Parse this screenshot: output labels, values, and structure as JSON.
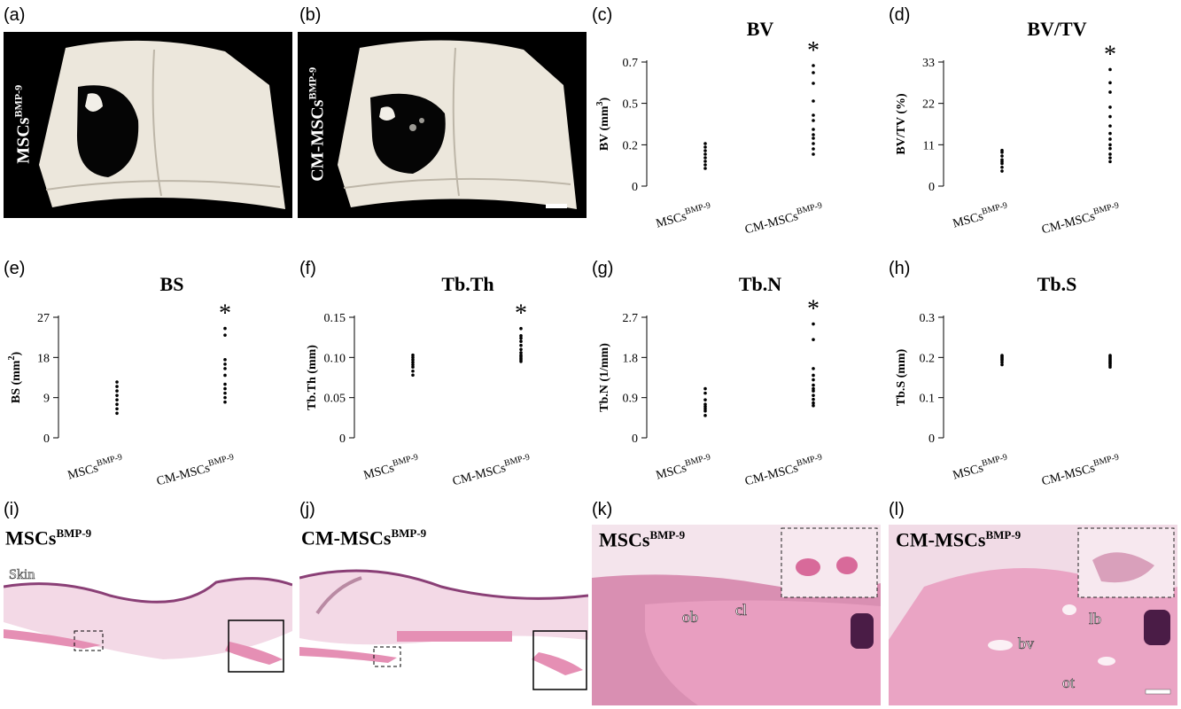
{
  "panel_labels": [
    "(a)",
    "(b)",
    "(c)",
    "(d)",
    "(e)",
    "(f)",
    "(g)",
    "(h)",
    "(i)",
    "(j)",
    "(k)",
    "(l)"
  ],
  "photos": {
    "a_label": {
      "main": "MSCs",
      "sup": "BMP-9"
    },
    "b_label": {
      "main": "CM-MSCs",
      "sup": "BMP-9"
    }
  },
  "histology": {
    "i": {
      "title_main": "MSCs",
      "title_sup": "BMP-9",
      "annotation": "Skin"
    },
    "j": {
      "title_main": "CM-MSCs",
      "title_sup": "BMP-9"
    },
    "k": {
      "title_main": "MSCs",
      "title_sup": "BMP-9",
      "ann1": "ob",
      "ann2": "cl"
    },
    "l": {
      "title_main": "CM-MSCs",
      "title_sup": "BMP-9",
      "ann1": "lb",
      "ann2": "bv",
      "ann3": "ot"
    }
  },
  "colors": {
    "dots": "#000000",
    "photo_bg": "#000000",
    "bone": "#ece7dc",
    "tissue_pink": "#e58fb4",
    "tissue_light": "#f3d9e6"
  },
  "chart_data": [
    {
      "id": "c",
      "type": "scatter",
      "title": "BV",
      "ylabel_main": "BV (mm",
      "ylabel_sup": "3",
      "ylabel_end": ")",
      "ticks": [
        "0",
        "0.2",
        "0.5",
        "0.7"
      ],
      "tick_values": [
        0,
        0.233,
        0.467,
        0.7
      ],
      "ylim": [
        0,
        0.7
      ],
      "categories": [
        {
          "main": "MSCs",
          "sup": "BMP-9"
        },
        {
          "main": "CM-MSCs",
          "sup": "BMP-9"
        }
      ],
      "series": [
        [
          0.1,
          0.12,
          0.14,
          0.16,
          0.18,
          0.2,
          0.22,
          0.24
        ],
        [
          0.18,
          0.21,
          0.24,
          0.27,
          0.29,
          0.32,
          0.37,
          0.4,
          0.48,
          0.58,
          0.64,
          0.68
        ]
      ],
      "significance": [
        null,
        "*"
      ]
    },
    {
      "id": "d",
      "type": "scatter",
      "title": "BV/TV",
      "ylabel_main": "BV/TV (%)",
      "ylabel_sup": "",
      "ylabel_end": "",
      "ticks": [
        "0",
        "11",
        "22",
        "33"
      ],
      "tick_values": [
        0,
        11,
        22,
        33
      ],
      "ylim": [
        0,
        33
      ],
      "categories": [
        {
          "main": "MSCs",
          "sup": "BMP-9"
        },
        {
          "main": "CM-MSCs",
          "sup": "BMP-9"
        }
      ],
      "series": [
        [
          4,
          5,
          6,
          6.5,
          7,
          8,
          9,
          9.5
        ],
        [
          6.5,
          7.5,
          8.5,
          10,
          11,
          12.5,
          14,
          16,
          18.5,
          21,
          25,
          27.5,
          31
        ]
      ],
      "significance": [
        null,
        "*"
      ]
    },
    {
      "id": "e",
      "type": "scatter",
      "title": "BS",
      "ylabel_main": "BS (mm",
      "ylabel_sup": "2",
      "ylabel_end": ")",
      "ticks": [
        "0",
        "9",
        "18",
        "27"
      ],
      "tick_values": [
        0,
        9,
        18,
        27
      ],
      "ylim": [
        0,
        27
      ],
      "categories": [
        {
          "main": "MSCs",
          "sup": "BMP-9"
        },
        {
          "main": "CM-MSCs",
          "sup": "BMP-9"
        }
      ],
      "series": [
        [
          5.5,
          6.5,
          7.5,
          8.5,
          9.5,
          10.5,
          11.5,
          12.5
        ],
        [
          8,
          9,
          10,
          11,
          12,
          14,
          15.5,
          16.5,
          17.5,
          23,
          24.5
        ]
      ],
      "significance": [
        null,
        "*"
      ]
    },
    {
      "id": "f",
      "type": "scatter",
      "title": "Tb.Th",
      "ylabel_main": "Tb.Th (mm)",
      "ylabel_sup": "",
      "ylabel_end": "",
      "ticks": [
        "0",
        "0.05",
        "0.10",
        "0.15"
      ],
      "tick_values": [
        0,
        0.05,
        0.1,
        0.15
      ],
      "ylim": [
        0,
        0.15
      ],
      "categories": [
        {
          "main": "MSCs",
          "sup": "BMP-9"
        },
        {
          "main": "CM-MSCs",
          "sup": "BMP-9"
        }
      ],
      "series": [
        [
          0.078,
          0.083,
          0.088,
          0.091,
          0.094,
          0.097,
          0.1,
          0.103
        ],
        [
          0.095,
          0.097,
          0.099,
          0.101,
          0.103,
          0.106,
          0.11,
          0.115,
          0.12,
          0.124,
          0.127,
          0.136
        ]
      ],
      "significance": [
        null,
        "*"
      ]
    },
    {
      "id": "g",
      "type": "scatter",
      "title": "Tb.N",
      "ylabel_main": "Tb.N (1/mm)",
      "ylabel_sup": "",
      "ylabel_end": "",
      "ticks": [
        "0",
        "0.9",
        "1.8",
        "2.7"
      ],
      "tick_values": [
        0,
        0.9,
        1.8,
        2.7
      ],
      "ylim": [
        0,
        2.7
      ],
      "categories": [
        {
          "main": "MSCs",
          "sup": "BMP-9"
        },
        {
          "main": "CM-MSCs",
          "sup": "BMP-9"
        }
      ],
      "series": [
        [
          0.5,
          0.6,
          0.65,
          0.7,
          0.75,
          0.85,
          1.0,
          1.1
        ],
        [
          0.72,
          0.78,
          0.86,
          0.95,
          1.05,
          1.1,
          1.18,
          1.3,
          1.4,
          1.55,
          2.2,
          2.55
        ]
      ],
      "significance": [
        null,
        "*"
      ]
    },
    {
      "id": "h",
      "type": "scatter",
      "title": "Tb.S",
      "ylabel_main": "Tb.S (mm)",
      "ylabel_sup": "",
      "ylabel_end": "",
      "ticks": [
        "0",
        "0.1",
        "0.2",
        "0.3"
      ],
      "tick_values": [
        0,
        0.1,
        0.2,
        0.3
      ],
      "ylim": [
        0,
        0.3
      ],
      "categories": [
        {
          "main": "MSCs",
          "sup": "BMP-9"
        },
        {
          "main": "CM-MSCs",
          "sup": "BMP-9"
        }
      ],
      "series": [
        [
          0.182,
          0.188,
          0.193,
          0.196,
          0.199,
          0.202,
          0.205
        ],
        [
          0.176,
          0.18,
          0.184,
          0.187,
          0.19,
          0.193,
          0.196,
          0.199,
          0.202,
          0.205
        ]
      ],
      "significance": [
        null,
        null
      ]
    }
  ]
}
